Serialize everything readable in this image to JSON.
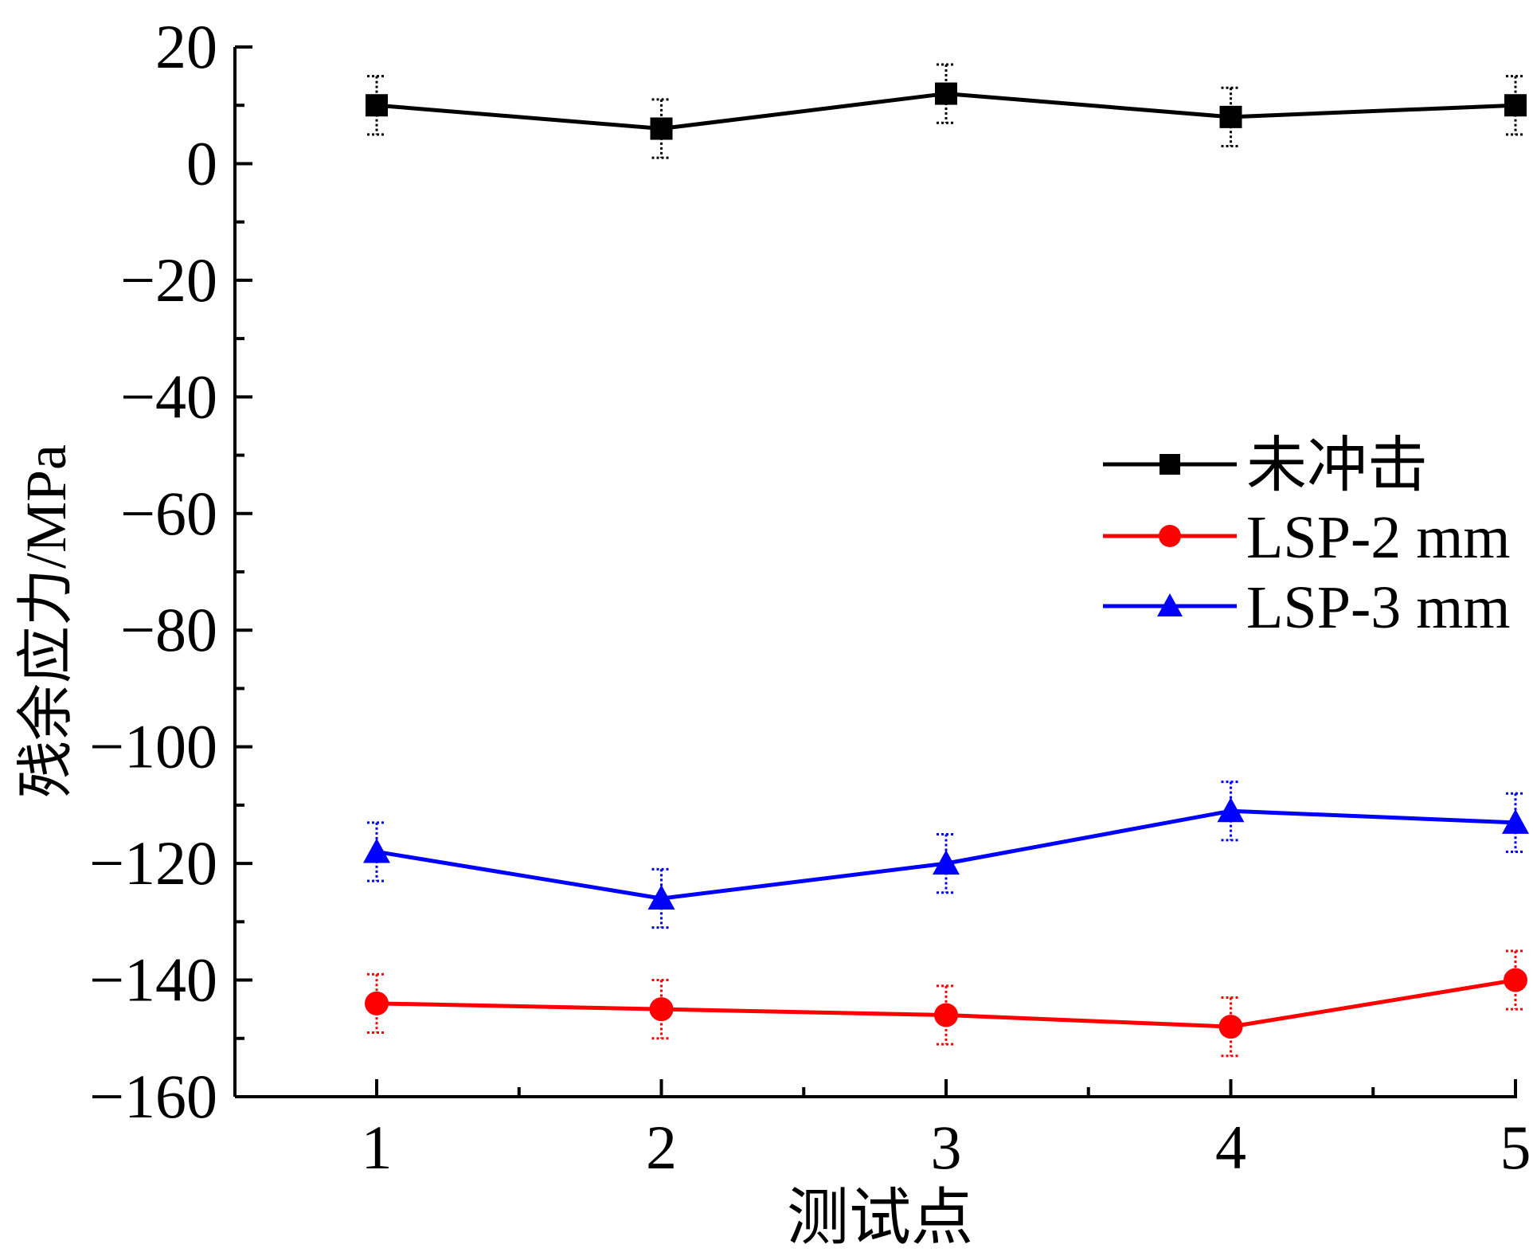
{
  "chart_data": {
    "type": "line",
    "title": "",
    "xlabel": "测试点",
    "ylabel": "残余应力/MPa",
    "x": [
      1,
      2,
      3,
      4,
      5
    ],
    "xlim": [
      1,
      5
    ],
    "ylim": [
      -160,
      20
    ],
    "xticks": [
      "1",
      "2",
      "3",
      "4",
      "5"
    ],
    "yticks": [
      20,
      0,
      -20,
      -40,
      -60,
      -80,
      -100,
      -120,
      -140,
      -160
    ],
    "ytick_labels": [
      "20",
      "0",
      "−20",
      "−40",
      "−60",
      "−80",
      "−100",
      "−120",
      "−140",
      "−160"
    ],
    "grid": false,
    "legend_position": "right-middle",
    "series": [
      {
        "name": "未冲击",
        "color": "#000000",
        "marker": "square",
        "values": [
          10,
          6,
          12,
          8,
          10
        ],
        "error": [
          5,
          5,
          5,
          5,
          5
        ]
      },
      {
        "name": "LSP-2 mm",
        "color": "#ff0000",
        "marker": "circle",
        "values": [
          -144,
          -145,
          -146,
          -148,
          -140
        ],
        "error": [
          5,
          5,
          5,
          5,
          5
        ]
      },
      {
        "name": "LSP-3 mm",
        "color": "#0000ff",
        "marker": "triangle",
        "values": [
          -118,
          -126,
          -120,
          -111,
          -113
        ],
        "error": [
          5,
          5,
          5,
          5,
          5
        ]
      }
    ]
  }
}
